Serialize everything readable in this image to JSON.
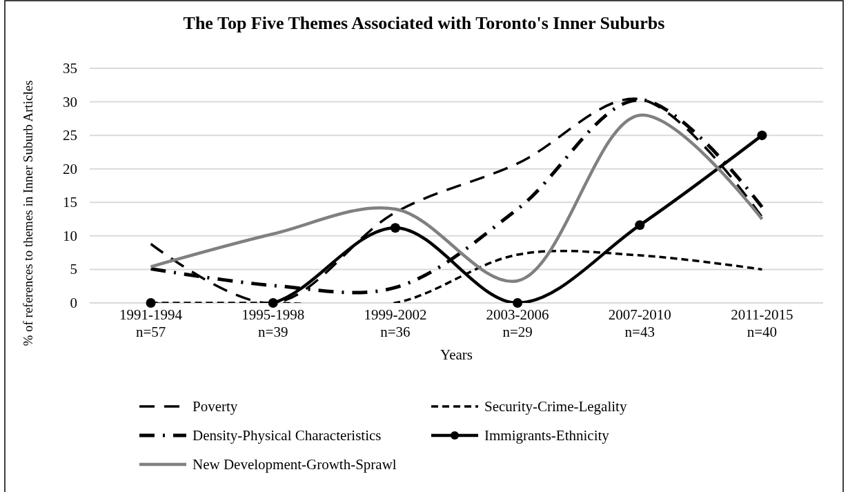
{
  "chart_data": {
    "type": "line",
    "title": "The Top Five Themes Associated with Toronto's Inner Suburbs",
    "xlabel": "Years",
    "ylabel": "% of references to themes in Inner Suburb Articles",
    "categories": [
      "1991-1994\nn=57",
      "1995-1998\nn=39",
      "1999-2002\nn=36",
      "2003-2006\nn=29",
      "2007-2010\nn=43",
      "2011-2015\nn=40"
    ],
    "ylim": [
      0,
      35
    ],
    "yticks": [
      0,
      5,
      10,
      15,
      20,
      25,
      30,
      35
    ],
    "grid": "y",
    "legend": "bottom",
    "series": [
      {
        "name": "Poverty",
        "color": "#000000",
        "line_style": "dashed",
        "marker": "none",
        "values": [
          8.8,
          0,
          13.5,
          20.8,
          30.4,
          12.8
        ]
      },
      {
        "name": "Security-Crime-Legality",
        "color": "#000000",
        "line_style": "dashed",
        "marker": "none",
        "values": [
          0,
          0,
          0,
          7.2,
          7.1,
          5
        ]
      },
      {
        "name": "Density-Physical Characteristics",
        "color": "#000000",
        "line_style": "dashed",
        "marker": "none",
        "values": [
          5.1,
          2.6,
          2.3,
          14,
          30.3,
          14.3
        ]
      },
      {
        "name": "Immigrants-Ethnicity",
        "color": "#000000",
        "line_style": "solid",
        "marker": "circle",
        "values": [
          0,
          0,
          11.2,
          0,
          11.6,
          25
        ]
      },
      {
        "name": "New Development-Growth-Sprawl",
        "color": "#808080",
        "line_style": "solid",
        "marker": "none",
        "values": [
          5.4,
          10.3,
          14,
          3.3,
          28,
          12.5
        ]
      }
    ]
  }
}
